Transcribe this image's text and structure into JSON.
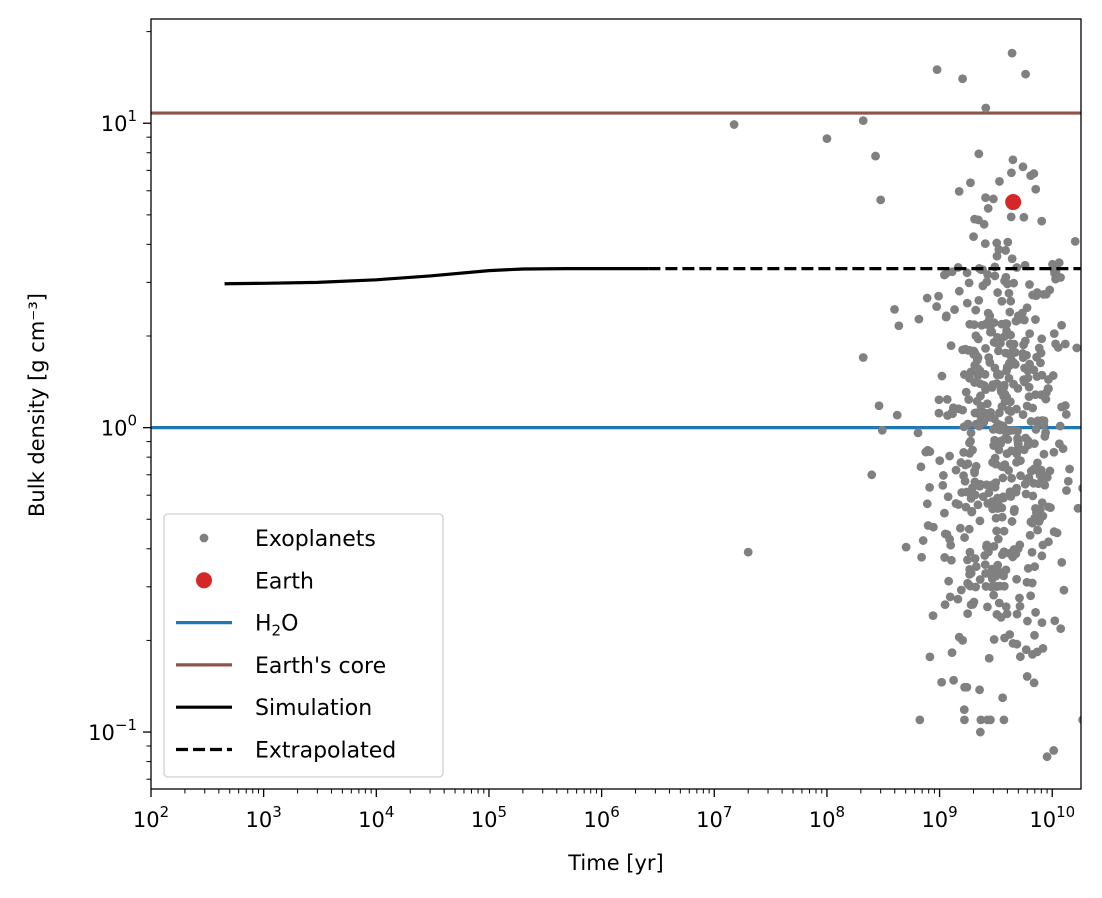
{
  "chart_data": {
    "type": "scatter",
    "xlabel": "Time [yr]",
    "ylabel": "Bulk density [g cm⁻³]",
    "xscale": "log",
    "yscale": "log",
    "xlim": [
      100,
      18000000000
    ],
    "ylim": [
      0.065,
      22
    ],
    "x_ticks": [
      {
        "value": 100,
        "base": "10",
        "exp": "2"
      },
      {
        "value": 1000,
        "base": "10",
        "exp": "3"
      },
      {
        "value": 10000,
        "base": "10",
        "exp": "4"
      },
      {
        "value": 100000,
        "base": "10",
        "exp": "5"
      },
      {
        "value": 1000000,
        "base": "10",
        "exp": "6"
      },
      {
        "value": 10000000,
        "base": "10",
        "exp": "7"
      },
      {
        "value": 100000000,
        "base": "10",
        "exp": "8"
      },
      {
        "value": 1000000000,
        "base": "10",
        "exp": "9"
      },
      {
        "value": 10000000000,
        "base": "10",
        "exp": "10"
      }
    ],
    "y_ticks": [
      {
        "value": 0.1,
        "base": "10",
        "exp": "−1"
      },
      {
        "value": 1,
        "base": "10",
        "exp": "0"
      },
      {
        "value": 10,
        "base": "10",
        "exp": "1"
      }
    ],
    "grid": false,
    "legend_position": "lower-left",
    "series": [
      {
        "name": "Exoplanets",
        "kind": "scatter",
        "color": "#808080",
        "highlight_points": [
          [
            15000000,
            9.9
          ],
          [
            100000000,
            8.9
          ],
          [
            210000000,
            10.2
          ],
          [
            270000000,
            7.8
          ],
          [
            300000000,
            5.6
          ],
          [
            210000000,
            1.7
          ],
          [
            290000000,
            1.18
          ],
          [
            310000000,
            0.98
          ],
          [
            250000000,
            0.7
          ],
          [
            20000000,
            0.39
          ],
          [
            950000000,
            15.0
          ],
          [
            1600000000,
            14.0
          ],
          [
            4400000000,
            17.0
          ],
          [
            5800000000,
            14.5
          ],
          [
            9000000000,
            0.083
          ],
          [
            10300000000,
            0.087
          ],
          [
            2300000000,
            0.1
          ]
        ],
        "cloud_seed": 12345,
        "cloud_count": 560,
        "cloud_log10x_mean": 9.55,
        "cloud_log10x_sd": 0.32,
        "cloud_log10x_range": [
          8.6,
          10.3
        ],
        "cloud_log10y_range": [
          -0.96,
          1.05
        ],
        "cloud_log10y_centre": -0.05
      },
      {
        "name": "Earth",
        "kind": "scatter",
        "color": "#d62728",
        "points": [
          [
            4500000000,
            5.51
          ]
        ]
      },
      {
        "name": "H₂O",
        "name_base": "H",
        "name_sub": "2",
        "name_rest": "O",
        "kind": "hline",
        "color": "#1f77b4",
        "y": 1.0
      },
      {
        "name": "Earth's core",
        "kind": "hline",
        "color": "#8c564b",
        "y": 10.8
      },
      {
        "name": "Simulation",
        "kind": "line",
        "color": "#000000",
        "dash": "solid",
        "x": [
          450,
          1000,
          3000,
          10000,
          30000,
          100000,
          200000,
          500000,
          1000000,
          2600000
        ],
        "y": [
          2.97,
          2.98,
          3.0,
          3.06,
          3.15,
          3.28,
          3.32,
          3.33,
          3.33,
          3.33
        ]
      },
      {
        "name": "Extrapolated",
        "kind": "line",
        "color": "#000000",
        "dash": "dashed",
        "x": [
          2600000,
          18000000000
        ],
        "y": [
          3.33,
          3.33
        ]
      }
    ]
  }
}
